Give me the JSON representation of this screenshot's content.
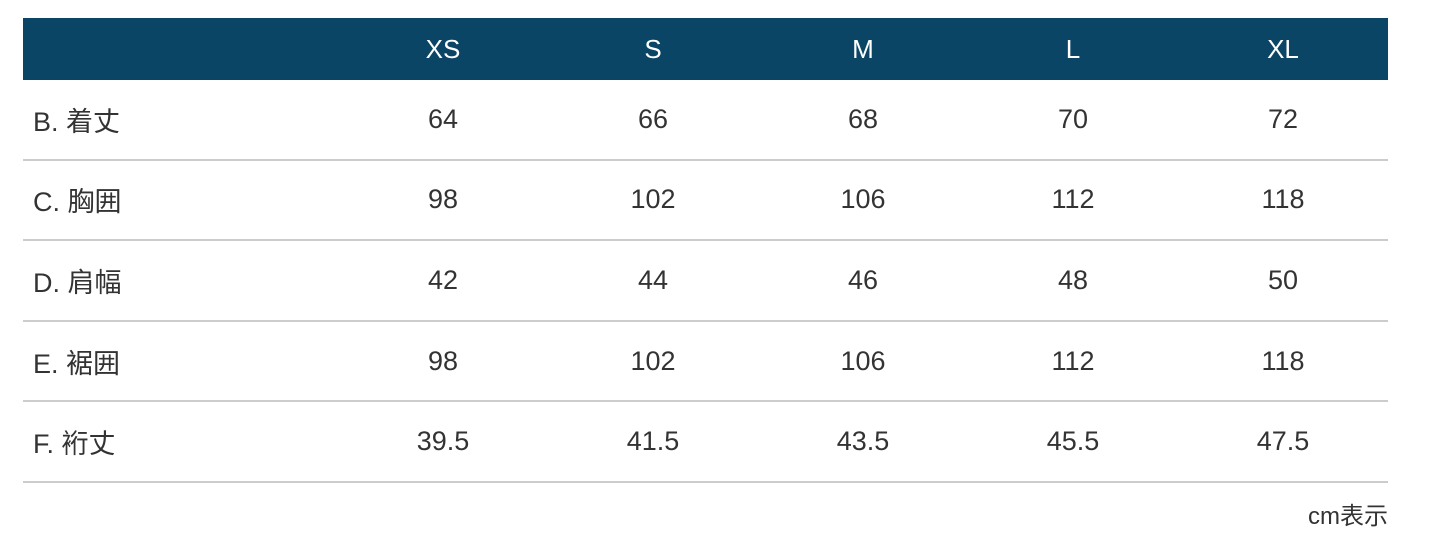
{
  "chart_data": {
    "type": "table",
    "columns": [
      "XS",
      "S",
      "M",
      "L",
      "XL"
    ],
    "rows": [
      {
        "label": "B. 着丈",
        "values": [
          "64",
          "66",
          "68",
          "70",
          "72"
        ]
      },
      {
        "label": "C. 胸囲",
        "values": [
          "98",
          "102",
          "106",
          "112",
          "118"
        ]
      },
      {
        "label": "D. 肩幅",
        "values": [
          "42",
          "44",
          "46",
          "48",
          "50"
        ]
      },
      {
        "label": "E. 裾囲",
        "values": [
          "98",
          "102",
          "106",
          "112",
          "118"
        ]
      },
      {
        "label": "F. 裄丈",
        "values": [
          "39.5",
          "41.5",
          "43.5",
          "45.5",
          "47.5"
        ]
      }
    ],
    "unit_note": "cm表示",
    "layout": {
      "header_position": "top",
      "grid": "horizontal-dividers-only"
    }
  },
  "colors": {
    "header_bg": "#0a4566",
    "header_text": "#ffffff",
    "body_text": "#333333",
    "divider": "#cccccc",
    "background": "#ffffff"
  }
}
